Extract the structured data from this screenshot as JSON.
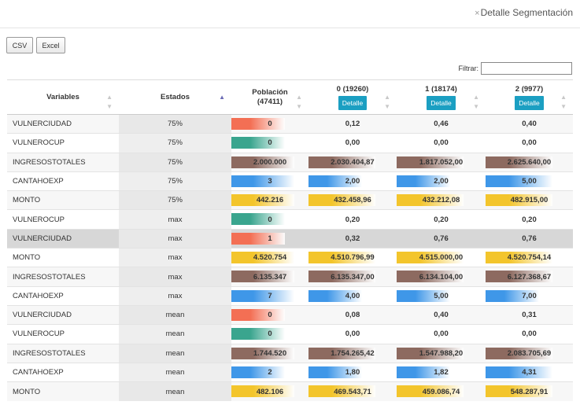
{
  "header": {
    "close_symbol": "×",
    "title": "Detalle Segmentación"
  },
  "toolbar": {
    "csv_label": "CSV",
    "excel_label": "Excel"
  },
  "filter": {
    "label": "Filtrar:",
    "value": ""
  },
  "colors": {
    "VULNERCIUDAD": "#f36f54",
    "VULNEROCUP": "#3aa58e",
    "INGRESOSTOTALES": "#8d6a60",
    "CANTAHOEXP": "#3f97e8",
    "MONTO": "#f3c52c"
  },
  "table": {
    "columns": [
      {
        "label": "Variables"
      },
      {
        "label": "Estados"
      },
      {
        "label": "Población",
        "sub": "(47411)"
      },
      {
        "label": "0 (19260)",
        "button": "Detalle"
      },
      {
        "label": "1 (18174)",
        "button": "Detalle"
      },
      {
        "label": "2 (9977)",
        "button": "Detalle"
      }
    ],
    "rows": [
      {
        "variable": "VULNERCIUDAD",
        "estado": "75%",
        "poblacion": "0",
        "pop_fill": 0.85,
        "segs": [
          "0,12",
          "0,46",
          "0,40"
        ],
        "seg_fills": [
          0,
          0,
          0
        ]
      },
      {
        "variable": "VULNEROCUP",
        "estado": "75%",
        "poblacion": "0",
        "pop_fill": 0.85,
        "segs": [
          "0,00",
          "0,00",
          "0,00"
        ],
        "seg_fills": [
          0,
          0,
          0
        ]
      },
      {
        "variable": "INGRESOSTOTALES",
        "estado": "75%",
        "poblacion": "2.000.000",
        "pop_fill": 1,
        "segs": [
          "2.030.404,87",
          "1.817.052,00",
          "2.625.640,00"
        ],
        "seg_fills": [
          1,
          1,
          1
        ]
      },
      {
        "variable": "CANTAHOEXP",
        "estado": "75%",
        "poblacion": "3",
        "pop_fill": 1,
        "segs": [
          "2,00",
          "2,00",
          "5,00"
        ],
        "seg_fills": [
          0.8,
          0.8,
          1
        ]
      },
      {
        "variable": "MONTO",
        "estado": "75%",
        "poblacion": "442.216",
        "pop_fill": 1,
        "segs": [
          "432.458,96",
          "432.212,08",
          "482.915,00"
        ],
        "seg_fills": [
          1,
          1,
          1
        ]
      },
      {
        "variable": "VULNEROCUP",
        "estado": "max",
        "poblacion": "0",
        "pop_fill": 0.85,
        "segs": [
          "0,20",
          "0,20",
          "0,20"
        ],
        "seg_fills": [
          0,
          0,
          0
        ]
      },
      {
        "variable": "VULNERCIUDAD",
        "estado": "max",
        "poblacion": "1",
        "pop_fill": 0.85,
        "segs": [
          "0,32",
          "0,76",
          "0,76"
        ],
        "seg_fills": [
          0,
          0,
          0
        ],
        "selected": true
      },
      {
        "variable": "MONTO",
        "estado": "max",
        "poblacion": "4.520.754",
        "pop_fill": 1,
        "segs": [
          "4.510.796,99",
          "4.515.000,00",
          "4.520.754,14"
        ],
        "seg_fills": [
          1,
          1,
          1
        ]
      },
      {
        "variable": "INGRESOSTOTALES",
        "estado": "max",
        "poblacion": "6.135.347",
        "pop_fill": 1,
        "segs": [
          "6.135.347,00",
          "6.134.104,00",
          "6.127.368,67"
        ],
        "seg_fills": [
          1,
          1,
          1
        ]
      },
      {
        "variable": "CANTAHOEXP",
        "estado": "max",
        "poblacion": "7",
        "pop_fill": 1,
        "segs": [
          "4,00",
          "5,00",
          "7,00"
        ],
        "seg_fills": [
          0.8,
          0.8,
          0.8
        ]
      },
      {
        "variable": "VULNERCIUDAD",
        "estado": "mean",
        "poblacion": "0",
        "pop_fill": 0.85,
        "segs": [
          "0,08",
          "0,40",
          "0,31"
        ],
        "seg_fills": [
          0,
          0,
          0
        ]
      },
      {
        "variable": "VULNEROCUP",
        "estado": "mean",
        "poblacion": "0",
        "pop_fill": 0.85,
        "segs": [
          "0,00",
          "0,00",
          "0,00"
        ],
        "seg_fills": [
          0,
          0,
          0
        ]
      },
      {
        "variable": "INGRESOSTOTALES",
        "estado": "mean",
        "poblacion": "1.744.520",
        "pop_fill": 1,
        "segs": [
          "1.754.265,42",
          "1.547.988,20",
          "2.083.705,69"
        ],
        "seg_fills": [
          1,
          1,
          1
        ]
      },
      {
        "variable": "CANTAHOEXP",
        "estado": "mean",
        "poblacion": "2",
        "pop_fill": 0.85,
        "segs": [
          "1,80",
          "1,82",
          "4,31"
        ],
        "seg_fills": [
          0.8,
          0.8,
          1
        ]
      },
      {
        "variable": "MONTO",
        "estado": "mean",
        "poblacion": "482.106",
        "pop_fill": 1,
        "segs": [
          "469.543,71",
          "459.086,74",
          "548.287,91"
        ],
        "seg_fills": [
          1,
          1,
          1
        ]
      }
    ]
  }
}
